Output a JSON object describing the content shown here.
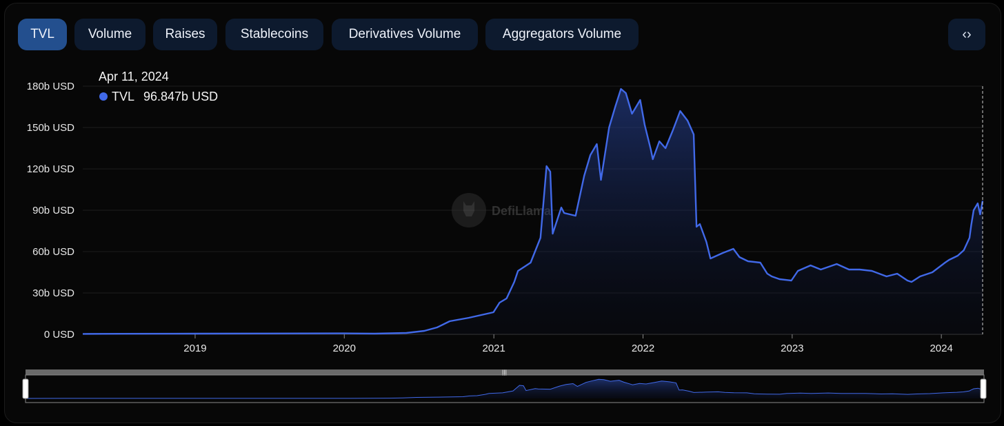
{
  "tabs": [
    {
      "label": "TVL",
      "active": true
    },
    {
      "label": "Volume",
      "active": false
    },
    {
      "label": "Raises",
      "active": false
    },
    {
      "label": "Stablecoins",
      "active": false
    },
    {
      "label": "Derivatives Volume",
      "active": false
    },
    {
      "label": "Aggregators Volume",
      "active": false
    }
  ],
  "embed_icon": "code-brackets-icon",
  "watermark": "DefiLlama",
  "colors": {
    "line": "#4169e8",
    "accent": "#234f8e",
    "background": "#070707"
  },
  "tooltip": {
    "date": "Apr 11, 2024",
    "series": "TVL",
    "value": "96.847b USD"
  },
  "chart_data": {
    "type": "area",
    "title": "",
    "xlabel": "",
    "ylabel": "",
    "y_unit": "USD",
    "y_ticks": [
      "0 USD",
      "30b USD",
      "60b USD",
      "90b USD",
      "120b USD",
      "150b USD",
      "180b USD"
    ],
    "ylim": [
      0,
      180
    ],
    "x_ticks": [
      "2019",
      "2020",
      "2021",
      "2022",
      "2023",
      "2024"
    ],
    "xlim": [
      "2018-04-01",
      "2024-04-11"
    ],
    "grid": true,
    "legend": "none",
    "series": [
      {
        "name": "TVL",
        "x": [
          "2018-04-01",
          "2018-07-01",
          "2019-01-01",
          "2019-06-01",
          "2020-01-01",
          "2020-03-15",
          "2020-06-01",
          "2020-07-15",
          "2020-08-15",
          "2020-09-15",
          "2020-11-01",
          "2020-12-31",
          "2021-01-15",
          "2021-02-01",
          "2021-02-20",
          "2021-03-01",
          "2021-04-01",
          "2021-04-25",
          "2021-05-10",
          "2021-05-19",
          "2021-05-25",
          "2021-06-15",
          "2021-06-22",
          "2021-07-20",
          "2021-08-10",
          "2021-08-25",
          "2021-09-10",
          "2021-09-20",
          "2021-10-10",
          "2021-10-25",
          "2021-11-08",
          "2021-11-20",
          "2021-12-05",
          "2021-12-25",
          "2022-01-05",
          "2022-01-20",
          "2022-01-25",
          "2022-02-10",
          "2022-02-25",
          "2022-03-15",
          "2022-04-02",
          "2022-04-20",
          "2022-05-05",
          "2022-05-12",
          "2022-05-20",
          "2022-06-05",
          "2022-06-15",
          "2022-07-15",
          "2022-08-10",
          "2022-08-25",
          "2022-09-15",
          "2022-10-15",
          "2022-11-01",
          "2022-11-12",
          "2022-12-01",
          "2022-12-30",
          "2023-01-15",
          "2023-02-15",
          "2023-03-12",
          "2023-04-20",
          "2023-05-20",
          "2023-06-15",
          "2023-07-15",
          "2023-08-20",
          "2023-09-15",
          "2023-10-10",
          "2023-10-20",
          "2023-11-10",
          "2023-12-10",
          "2024-01-10",
          "2024-01-20",
          "2024-02-10",
          "2024-02-25",
          "2024-03-10",
          "2024-03-14",
          "2024-03-20",
          "2024-03-30",
          "2024-04-05",
          "2024-04-11"
        ],
        "values": [
          0.3,
          0.4,
          0.5,
          0.6,
          0.7,
          0.5,
          1.0,
          2.5,
          5.0,
          9.5,
          12.0,
          16.0,
          23.0,
          26.0,
          38.0,
          46.0,
          52.0,
          70.0,
          122.0,
          118.0,
          73.0,
          92.0,
          88.0,
          86.0,
          115.0,
          130.0,
          138.0,
          112.0,
          150.0,
          165.0,
          178.0,
          175.0,
          160.0,
          170.0,
          152.0,
          134.0,
          127.0,
          140.0,
          135.0,
          148.0,
          162.0,
          155.0,
          145.0,
          78.0,
          80.0,
          67.0,
          55.0,
          59.0,
          62.0,
          56.0,
          53.0,
          52.0,
          44.0,
          42.0,
          40.0,
          39.0,
          46.0,
          50.0,
          47.0,
          51.0,
          47.0,
          47.0,
          46.0,
          42.0,
          44.0,
          39.0,
          38.0,
          42.0,
          45.0,
          52.0,
          54.0,
          57.0,
          61.0,
          70.0,
          79.0,
          90.0,
          95.0,
          87.0,
          96.847
        ]
      }
    ]
  }
}
